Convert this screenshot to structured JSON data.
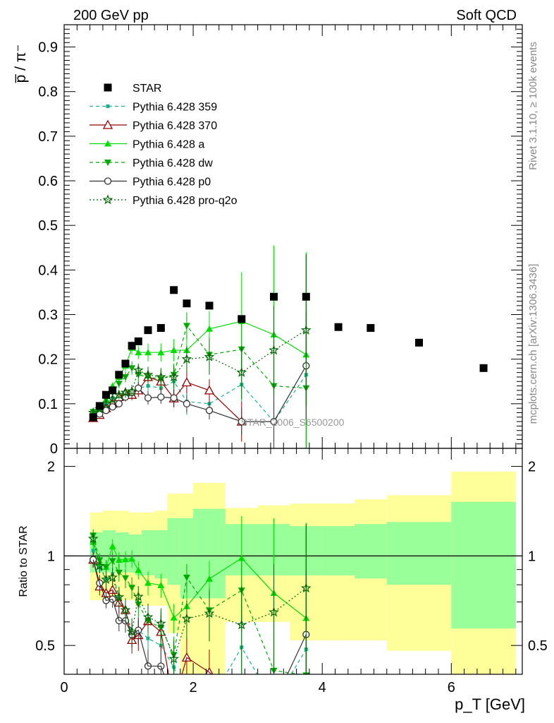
{
  "header": {
    "left": "200 GeV pp",
    "right": "Soft QCD"
  },
  "side": {
    "rivet": "Rivet 3.1.10, ≥ 100k events",
    "url": "mcplots.cern.ch [arXiv:1306.3436]"
  },
  "watermark": "STAR_2006_S6500200",
  "chart_data": {
    "type": "scatter",
    "ylabel_main": "p̅ / π⁻",
    "ylabel_ratio": "Ratio to STAR",
    "xlabel": "p_T [GeV]",
    "xlim": [
      0,
      7.1
    ],
    "ylim_main": [
      0,
      0.95
    ],
    "ylim_ratio": [
      0.4,
      2.3
    ],
    "x_ticks": [
      "0",
      "2",
      "4",
      "6"
    ],
    "y_ticks_main": [
      "0",
      "0.1",
      "0.2",
      "0.3",
      "0.4",
      "0.5",
      "0.6",
      "0.7",
      "0.8",
      "0.9"
    ],
    "y_ticks_ratio": [
      "0.5",
      "1",
      "2"
    ],
    "legend": [
      "STAR",
      "Pythia 6.428 359",
      "Pythia 6.428 370",
      "Pythia 6.428 a",
      "Pythia 6.428 dw",
      "Pythia 6.428 p0",
      "Pythia 6.428 pro-q2o"
    ],
    "star": {
      "name": "STAR",
      "color": "#000000",
      "x": [
        0.45,
        0.55,
        0.65,
        0.75,
        0.85,
        0.95,
        1.05,
        1.15,
        1.3,
        1.5,
        1.7,
        1.9,
        2.25,
        2.75,
        3.25,
        3.75,
        4.25,
        4.75,
        5.5,
        6.5
      ],
      "y": [
        0.07,
        0.095,
        0.12,
        0.13,
        0.165,
        0.19,
        0.23,
        0.24,
        0.265,
        0.27,
        0.355,
        0.325,
        0.32,
        0.29,
        0.34,
        0.34,
        0.272,
        0.27,
        0.237,
        0.18
      ],
      "bins": [
        [
          0.4,
          0.5
        ],
        [
          0.5,
          0.6
        ],
        [
          0.6,
          0.7
        ],
        [
          0.7,
          0.8
        ],
        [
          0.8,
          0.9
        ],
        [
          0.9,
          1.0
        ],
        [
          1.0,
          1.1
        ],
        [
          1.1,
          1.2
        ],
        [
          1.2,
          1.4
        ],
        [
          1.4,
          1.6
        ],
        [
          1.6,
          1.8
        ],
        [
          1.8,
          2.0
        ],
        [
          2.0,
          2.5
        ],
        [
          2.5,
          3.0
        ],
        [
          3.0,
          3.5
        ],
        [
          3.5,
          4.0
        ],
        [
          4.0,
          4.5
        ],
        [
          4.5,
          5.0
        ],
        [
          5.0,
          6.0
        ],
        [
          6.0,
          7.0
        ]
      ],
      "band_total": [
        [
          0.71,
          1.4
        ],
        [
          0.71,
          1.4
        ],
        [
          0.71,
          1.42
        ],
        [
          0.71,
          1.42
        ],
        [
          0.71,
          1.42
        ],
        [
          0.71,
          1.42
        ],
        [
          0.71,
          1.4
        ],
        [
          0.68,
          1.4
        ],
        [
          0.68,
          1.4
        ],
        [
          0.68,
          1.42
        ],
        [
          0.55,
          1.62
        ],
        [
          0.4,
          1.62
        ],
        [
          0.4,
          1.76
        ],
        [
          0.6,
          1.45
        ],
        [
          0.6,
          1.48
        ],
        [
          0.52,
          1.5
        ],
        [
          0.52,
          1.5
        ],
        [
          0.52,
          1.55
        ],
        [
          0.48,
          1.6
        ],
        [
          0.38,
          1.92
        ]
      ],
      "band_stat": [
        [
          0.88,
          1.2
        ],
        [
          0.88,
          1.2
        ],
        [
          0.88,
          1.22
        ],
        [
          0.88,
          1.22
        ],
        [
          0.88,
          1.2
        ],
        [
          0.88,
          1.2
        ],
        [
          0.88,
          1.18
        ],
        [
          0.86,
          1.18
        ],
        [
          0.86,
          1.22
        ],
        [
          0.84,
          1.22
        ],
        [
          0.8,
          1.34
        ],
        [
          0.72,
          1.34
        ],
        [
          0.72,
          1.44
        ],
        [
          0.86,
          1.28
        ],
        [
          0.86,
          1.28
        ],
        [
          0.86,
          1.26
        ],
        [
          0.86,
          1.26
        ],
        [
          0.84,
          1.28
        ],
        [
          0.8,
          1.3
        ],
        [
          0.57,
          1.52
        ]
      ]
    },
    "series": [
      {
        "name": "Pythia 6.428 359",
        "color": "#1aaf8b",
        "dash": "5,4",
        "marker": "square-small",
        "x": [
          0.45,
          0.55,
          0.65,
          0.75,
          0.85,
          0.95,
          1.05,
          1.15,
          1.3,
          1.5,
          1.7,
          1.9,
          2.25,
          2.75,
          3.25,
          3.75
        ],
        "y": [
          0.073,
          0.087,
          0.1,
          0.113,
          0.12,
          0.125,
          0.125,
          0.135,
          0.14,
          0.135,
          0.15,
          0.105,
          0.1,
          0.143,
          0.06,
          0.165
        ],
        "err": [
          0.004,
          0.004,
          0.005,
          0.006,
          0.008,
          0.01,
          0.012,
          0.015,
          0.015,
          0.02,
          0.03,
          0.03,
          0.03,
          0.04,
          0.05,
          0.06
        ]
      },
      {
        "name": "Pythia 6.428 370",
        "color": "#990000",
        "dash": "",
        "marker": "triangle-open",
        "x": [
          0.45,
          0.55,
          0.65,
          0.75,
          0.85,
          0.95,
          1.05,
          1.15,
          1.3,
          1.5,
          1.7,
          1.9,
          2.25,
          2.75
        ],
        "y": [
          0.068,
          0.075,
          0.09,
          0.1,
          0.115,
          0.125,
          0.12,
          0.13,
          0.16,
          0.15,
          0.112,
          0.148,
          0.13,
          0.06
        ],
        "err": [
          0.004,
          0.005,
          0.006,
          0.007,
          0.009,
          0.01,
          0.012,
          0.015,
          0.015,
          0.02,
          0.02,
          0.025,
          0.025,
          0.045
        ]
      },
      {
        "name": "Pythia 6.428 a",
        "color": "#00e000",
        "dash": "",
        "marker": "triangle-up",
        "x": [
          0.45,
          0.55,
          0.65,
          0.75,
          0.85,
          0.95,
          1.05,
          1.15,
          1.3,
          1.5,
          1.7,
          1.9,
          2.25,
          2.75,
          3.25,
          3.75
        ],
        "y": [
          0.078,
          0.09,
          0.11,
          0.14,
          0.16,
          0.185,
          0.225,
          0.215,
          0.215,
          0.215,
          0.22,
          0.22,
          0.268,
          0.285,
          0.255,
          0.21
        ],
        "err": [
          0.004,
          0.005,
          0.006,
          0.008,
          0.01,
          0.012,
          0.015,
          0.015,
          0.02,
          0.02,
          0.025,
          0.03,
          0.04,
          0.11,
          0.2,
          0.23
        ]
      },
      {
        "name": "Pythia 6.428 dw",
        "color": "#00aa00",
        "dash": "5,4",
        "marker": "triangle-down",
        "x": [
          0.45,
          0.55,
          0.65,
          0.75,
          0.85,
          0.95,
          1.05,
          1.15,
          1.3,
          1.5,
          1.7,
          1.9,
          2.25,
          2.75,
          3.25,
          3.75
        ],
        "y": [
          0.082,
          0.092,
          0.11,
          0.125,
          0.145,
          0.16,
          0.18,
          0.165,
          0.16,
          0.155,
          0.165,
          0.275,
          0.21,
          0.222,
          0.14,
          0.135
        ],
        "err": [
          0.004,
          0.005,
          0.006,
          0.008,
          0.01,
          0.012,
          0.015,
          0.015,
          0.018,
          0.02,
          0.025,
          0.03,
          0.04,
          0.06,
          0.08,
          0.3
        ]
      },
      {
        "name": "Pythia 6.428 p0",
        "color": "#333333",
        "dash": "",
        "marker": "circle-open",
        "x": [
          0.45,
          0.55,
          0.65,
          0.75,
          0.85,
          0.95,
          1.05,
          1.15,
          1.3,
          1.5,
          1.7,
          1.9,
          2.25,
          2.75,
          3.25,
          3.75
        ],
        "y": [
          0.068,
          0.077,
          0.085,
          0.093,
          0.1,
          0.115,
          0.125,
          0.135,
          0.113,
          0.115,
          0.113,
          0.1,
          0.085,
          0.06,
          0.06,
          0.185
        ],
        "err": [
          0.004,
          0.005,
          0.005,
          0.006,
          0.008,
          0.01,
          0.012,
          0.014,
          0.015,
          0.015,
          0.02,
          0.02,
          0.02,
          0.03,
          0.08,
          0.12
        ]
      },
      {
        "name": "Pythia 6.428 pro-q2o",
        "color": "#006600",
        "dash": "2,3",
        "marker": "star",
        "x": [
          0.45,
          0.55,
          0.65,
          0.75,
          0.85,
          0.95,
          1.05,
          1.15,
          1.3,
          1.5,
          1.7,
          1.9,
          2.25,
          2.75,
          3.25,
          3.75
        ],
        "y": [
          0.08,
          0.088,
          0.1,
          0.11,
          0.12,
          0.125,
          0.128,
          0.175,
          0.165,
          0.16,
          0.16,
          0.2,
          0.205,
          0.17,
          0.22,
          0.265
        ],
        "err": [
          0.004,
          0.005,
          0.006,
          0.008,
          0.01,
          0.012,
          0.014,
          0.015,
          0.018,
          0.02,
          0.025,
          0.03,
          0.04,
          0.06,
          0.1,
          0.17
        ]
      }
    ]
  }
}
